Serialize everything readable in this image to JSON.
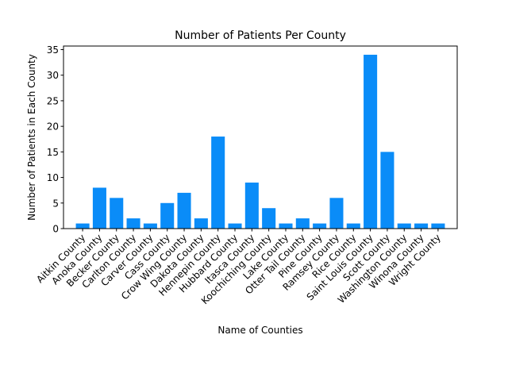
{
  "chart_data": {
    "type": "bar",
    "title": "Number of Patients Per County",
    "xlabel": "Name of Counties",
    "ylabel": "Number of Patients in Each County",
    "categories": [
      "Aitkin County",
      "Anoka County",
      "Becker County",
      "Carlton County",
      "Carver County",
      "Cass County",
      "Crow Wing County",
      "Dakota County",
      "Hennepin County",
      "Hubbard County",
      "Itasca County",
      "Koochiching County",
      "Lake County",
      "Otter Tail County",
      "Pine County",
      "Ramsey County",
      "Rice County",
      "Saint Louis County",
      "Scott County",
      "Washington County",
      "Winona County",
      "Wright County"
    ],
    "values": [
      1,
      8,
      6,
      2,
      1,
      5,
      7,
      2,
      18,
      1,
      9,
      4,
      1,
      2,
      1,
      6,
      1,
      34,
      15,
      1,
      1,
      1
    ],
    "ylim": [
      0,
      35.7
    ],
    "yticks": [
      0,
      5,
      10,
      15,
      20,
      25,
      30,
      35
    ],
    "bar_color": "#0a8cf8",
    "grid": false
  }
}
